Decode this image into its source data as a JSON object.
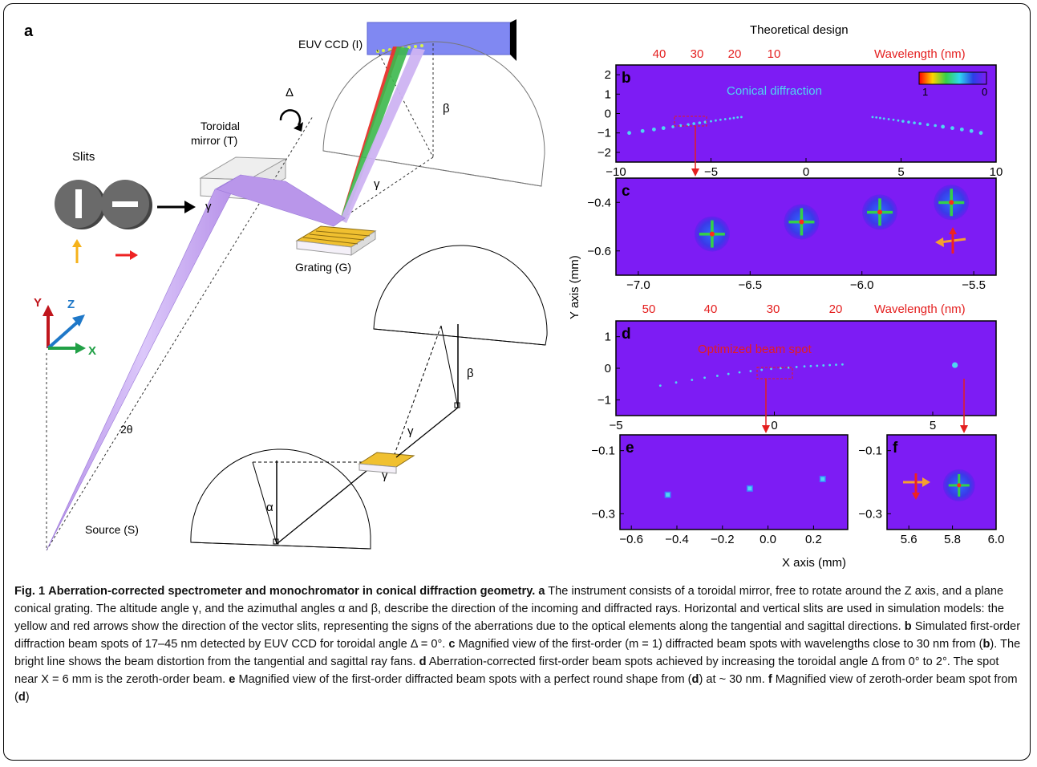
{
  "figure": {
    "panel_a": {
      "label": "a",
      "ccd_label": "EUV CCD (I)",
      "toroidal_label_1": "Toroidal",
      "toroidal_label_2": "mirror (T)",
      "slits_label": "Slits",
      "grating_label": "Grating (G)",
      "source_label": "Source (S)",
      "delta_symbol": "Δ",
      "beta_symbol": "β",
      "gamma_symbol": "γ",
      "alpha_symbol": "α",
      "two_theta": "2θ",
      "axis_x": "X",
      "axis_y": "Y",
      "axis_z": "Z",
      "colors": {
        "beam": "#c8a8f0",
        "ccd": "#7f86f0",
        "red_ray": "#e8322a",
        "green_ray": "#36b54a",
        "yellow_arrow": "#f5b21a",
        "red_arrow": "#ee2222",
        "axis_y": "#c0161d",
        "axis_z": "#1f78c8",
        "axis_x": "#21a046"
      }
    },
    "panel_top": {
      "title": "Theoretical design",
      "wavelength_label": "Wavelength (nm)",
      "wavelength_ticks": [
        "40",
        "30",
        "20",
        "10"
      ]
    },
    "panel_b": {
      "label": "b",
      "annotation": "Conical diffraction",
      "colorbar_min": "1",
      "colorbar_max": "0",
      "y_ticks": [
        "2",
        "1",
        "0",
        "−1",
        "−2"
      ],
      "x_ticks": [
        "−10",
        "−5",
        "0",
        "5",
        "10"
      ]
    },
    "panel_c": {
      "label": "c",
      "y_ticks": [
        "−0.4",
        "−0.6"
      ],
      "x_ticks": [
        "−7.0",
        "−6.5",
        "−6.0",
        "−5.5"
      ]
    },
    "y_axis_title": "Y axis (mm)",
    "panel_mid": {
      "wavelength_label": "Wavelength (nm)",
      "wavelength_ticks": [
        "50",
        "40",
        "30",
        "20"
      ]
    },
    "panel_d": {
      "label": "d",
      "annotation": "Optimized beam spot",
      "y_ticks": [
        "1",
        "0",
        "−1"
      ],
      "x_ticks": [
        "−5",
        "0",
        "5"
      ]
    },
    "panel_e": {
      "label": "e",
      "y_ticks": [
        "−0.1",
        "−0.3"
      ],
      "x_ticks": [
        "−0.6",
        "−0.4",
        "−0.2",
        "0.0",
        "0.2"
      ]
    },
    "panel_f": {
      "label": "f",
      "y_ticks": [
        "−0.1",
        "−0.3"
      ],
      "x_ticks": [
        "5.6",
        "5.8",
        "6.0"
      ]
    },
    "x_axis_title": "X axis (mm)",
    "plot_bg": "#7d1cf4",
    "spot_color": "#4fd6f0"
  },
  "chart_data": [
    {
      "type": "scatter",
      "title": "Theoretical design",
      "xlabel": "",
      "ylabel": "Y axis (mm)",
      "xlim": [
        -10,
        10
      ],
      "ylim": [
        -2.5,
        2.5
      ],
      "series": [
        {
          "values": [
            [
              -9.3,
              -1.0
            ],
            [
              -8.6,
              -0.9
            ],
            [
              -8.0,
              -0.82
            ],
            [
              -7.5,
              -0.75
            ],
            [
              -7.0,
              -0.68
            ],
            [
              -6.6,
              -0.62
            ],
            [
              -6.2,
              -0.57
            ],
            [
              -5.9,
              -0.52
            ],
            [
              -5.6,
              -0.48
            ],
            [
              -5.3,
              -0.44
            ],
            [
              -5.0,
              -0.4
            ],
            [
              -4.75,
              -0.36
            ],
            [
              -4.5,
              -0.32
            ],
            [
              -4.25,
              -0.29
            ],
            [
              -4.0,
              -0.26
            ],
            [
              -3.8,
              -0.23
            ],
            [
              -3.6,
              -0.2
            ],
            [
              -3.4,
              -0.18
            ],
            [
              3.5,
              -0.18
            ],
            [
              3.7,
              -0.2
            ],
            [
              3.9,
              -0.23
            ],
            [
              4.1,
              -0.26
            ],
            [
              4.35,
              -0.29
            ],
            [
              4.6,
              -0.32
            ],
            [
              4.85,
              -0.36
            ],
            [
              5.1,
              -0.4
            ],
            [
              5.4,
              -0.44
            ],
            [
              5.7,
              -0.48
            ],
            [
              6.0,
              -0.52
            ],
            [
              6.4,
              -0.57
            ],
            [
              6.8,
              -0.62
            ],
            [
              7.2,
              -0.68
            ],
            [
              7.7,
              -0.75
            ],
            [
              8.2,
              -0.82
            ],
            [
              8.7,
              -0.9
            ],
            [
              9.2,
              -1.0
            ]
          ]
        }
      ]
    },
    {
      "type": "scatter",
      "xlabel": "",
      "ylabel": "Y axis (mm)",
      "xlim": [
        -7.1,
        -5.4
      ],
      "ylim": [
        -0.7,
        -0.3
      ],
      "series": [
        {
          "values": [
            [
              -6.67,
              -0.53
            ],
            [
              -6.27,
              -0.48
            ],
            [
              -5.92,
              -0.44
            ],
            [
              -5.6,
              -0.4
            ]
          ]
        }
      ]
    },
    {
      "type": "scatter",
      "xlabel": "",
      "ylabel": "Y axis (mm)",
      "xlim": [
        -5,
        7
      ],
      "ylim": [
        -1.5,
        1.5
      ],
      "series": [
        {
          "name": "Optimized beam spot",
          "values": [
            [
              -3.6,
              -0.55
            ],
            [
              -3.1,
              -0.45
            ],
            [
              -2.6,
              -0.37
            ],
            [
              -2.2,
              -0.3
            ],
            [
              -1.8,
              -0.24
            ],
            [
              -1.45,
              -0.18
            ],
            [
              -1.1,
              -0.13
            ],
            [
              -0.75,
              -0.09
            ],
            [
              -0.4,
              -0.05
            ],
            [
              -0.1,
              -0.02
            ],
            [
              0.2,
              0.0
            ],
            [
              0.45,
              0.02
            ],
            [
              0.7,
              0.04
            ],
            [
              0.95,
              0.06
            ],
            [
              1.15,
              0.07
            ],
            [
              1.35,
              0.08
            ],
            [
              1.55,
              0.09
            ],
            [
              1.75,
              0.1
            ],
            [
              1.95,
              0.11
            ],
            [
              2.15,
              0.12
            ],
            [
              5.7,
              0.1
            ]
          ]
        }
      ]
    },
    {
      "type": "scatter",
      "xlabel": "X axis (mm)",
      "ylabel": "",
      "xlim": [
        -0.65,
        0.35
      ],
      "ylim": [
        -0.35,
        -0.05
      ],
      "series": [
        {
          "values": [
            [
              -0.44,
              -0.24
            ],
            [
              -0.08,
              -0.22
            ],
            [
              0.24,
              -0.19
            ]
          ]
        }
      ]
    },
    {
      "type": "scatter",
      "xlabel": "X axis (mm)",
      "ylabel": "",
      "xlim": [
        5.5,
        6.0
      ],
      "ylim": [
        -0.35,
        -0.05
      ],
      "series": [
        {
          "values": [
            [
              5.83,
              -0.21
            ]
          ]
        }
      ]
    }
  ],
  "caption": {
    "fig_label": "Fig. 1",
    "title": "Aberration-corrected spectrometer and monochromator in conical diffraction geometry.",
    "a_label": "a",
    "a_text": " The instrument consists of a toroidal mirror, free to rotate around the Z axis, and a plane conical grating. The altitude angle γ, and the azimuthal angles α and β, describe the direction of the incoming and diffracted rays. Horizontal and vertical slits are used in simulation models: the yellow and red arrows show the direction of the vector slits, representing the signs of the aberrations due to the optical elements along the tangential and sagittal directions. ",
    "b_label": "b",
    "b_text": " Simulated first-order diffraction beam spots of 17–45 nm detected by EUV CCD for toroidal angle Δ = 0°. ",
    "c_label": "c",
    "c_text": " Magnified view of the first-order (m = 1) diffracted beam spots with wavelengths close to 30 nm from (",
    "c_ref": "b",
    "c_text2": "). The bright line shows the beam distortion from the tangential and sagittal ray fans. ",
    "d_label": "d",
    "d_text": " Aberration-corrected first-order beam spots achieved by increasing the toroidal angle Δ from 0° to 2°. The spot near X = 6 mm is the zeroth-order beam. ",
    "e_label": "e",
    "e_text": " Magnified view of the first-order diffracted beam spots with a perfect round shape from (",
    "e_ref": "d",
    "e_text2": ") at ~ 30 nm. ",
    "f_label": "f",
    "f_text": " Magnified view of zeroth-order beam spot from (",
    "f_ref": "d",
    "f_text2": ")"
  }
}
